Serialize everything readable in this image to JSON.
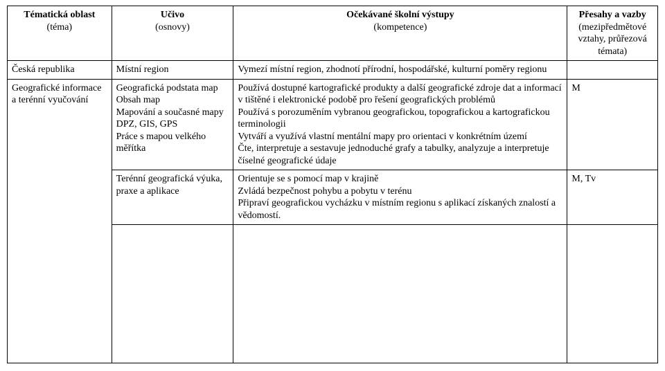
{
  "header": {
    "col1_line1": "Tématická oblast",
    "col1_line2": "(téma)",
    "col2_line1": "Učivo",
    "col2_line2": "(osnovy)",
    "col3_line1": "Očekávané školní výstupy",
    "col3_line2": "(kompetence)",
    "col4_line1": "Přesahy a vazby",
    "col4_line2": "(mezipředmětové",
    "col4_line3": "vztahy, průřezová",
    "col4_line4": "témata)"
  },
  "rows": [
    {
      "topic": "Česká republika",
      "subject": "Místní region",
      "outcome": "Vymezí místní region, zhodnotí přírodní, hospodářské, kulturní poměry regionu",
      "cross": ""
    },
    {
      "topic": "Geografické informace a terénní vyučování",
      "subject": "Geografická podstata map\nObsah map\nMapování a současné mapy\nDPZ, GIS, GPS\nPráce s mapou velkého měřítka",
      "outcome": "Používá dostupné kartografické produkty a další geografické zdroje dat a informací v tištěné i elektronické podobě pro řešení geografických problémů\nPoužívá s porozuměním vybranou geografickou, topografickou a kartografickou terminologii\nVytváří a využívá vlastní mentální mapy pro orientaci v konkrétním území\nČte, interpretuje a sestavuje jednoduché grafy a tabulky, analyzuje a interpretuje číselné geografické údaje",
      "cross": "M"
    },
    {
      "topic": "",
      "subject": "Terénní geografická výuka, praxe a aplikace",
      "outcome": "Orientuje se s pomocí map v krajině\nZvládá bezpečnost pohybu a pobytu v terénu\nPřipraví geografickou vycházku v místním regionu s aplikací získaných znalostí a vědomostí.",
      "cross": "M, Tv"
    }
  ]
}
